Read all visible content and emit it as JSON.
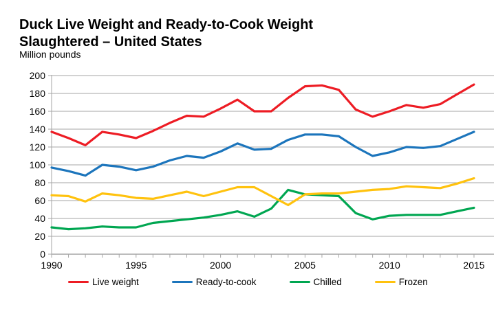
{
  "header": {
    "title_line1": "Duck Live Weight and Ready-to-Cook Weight",
    "title_line2": "Slaughtered – United States",
    "subtitle": "Million pounds"
  },
  "chart_data": {
    "type": "line",
    "title": "Duck Live Weight and Ready-to-Cook Weight Slaughtered – United States",
    "ylabel": "Million pounds",
    "xlabel": "",
    "ylim": [
      0,
      200
    ],
    "y_ticks": [
      0,
      20,
      40,
      60,
      80,
      100,
      120,
      140,
      160,
      180,
      200
    ],
    "x": [
      1990,
      1991,
      1992,
      1993,
      1994,
      1995,
      1996,
      1997,
      1998,
      1999,
      2000,
      2001,
      2002,
      2003,
      2004,
      2005,
      2006,
      2007,
      2008,
      2009,
      2010,
      2011,
      2012,
      2013,
      2014,
      2015
    ],
    "x_tick_labels": [
      "1990",
      "1995",
      "2000",
      "2005",
      "2010",
      "2015"
    ],
    "grid": true,
    "legend_position": "bottom",
    "colors": {
      "grid": "#a6a6a6",
      "axis": "#a6a6a6",
      "text": "#000000"
    },
    "series": [
      {
        "name": "Live weight",
        "color": "#ed1c24",
        "values": [
          137,
          130,
          122,
          137,
          134,
          130,
          138,
          147,
          155,
          154,
          163,
          173,
          160,
          160,
          175,
          188,
          189,
          184,
          162,
          154,
          160,
          167,
          164,
          168,
          179,
          190
        ]
      },
      {
        "name": "Ready-to-cook",
        "color": "#1c75bc",
        "values": [
          97,
          93,
          88,
          100,
          98,
          94,
          98,
          105,
          110,
          108,
          115,
          124,
          117,
          118,
          128,
          134,
          134,
          132,
          120,
          110,
          114,
          120,
          119,
          121,
          129,
          137
        ]
      },
      {
        "name": "Chilled",
        "color": "#00a651",
        "values": [
          30,
          28,
          29,
          31,
          30,
          30,
          35,
          37,
          39,
          41,
          44,
          48,
          42,
          51,
          72,
          67,
          66,
          65,
          46,
          39,
          43,
          44,
          44,
          44,
          48,
          52
        ]
      },
      {
        "name": "Frozen",
        "color": "#ffc20e",
        "values": [
          66,
          65,
          59,
          68,
          66,
          63,
          62,
          66,
          70,
          65,
          70,
          75,
          75,
          65,
          55,
          67,
          68,
          68,
          70,
          72,
          73,
          76,
          75,
          74,
          79,
          85
        ]
      }
    ]
  }
}
